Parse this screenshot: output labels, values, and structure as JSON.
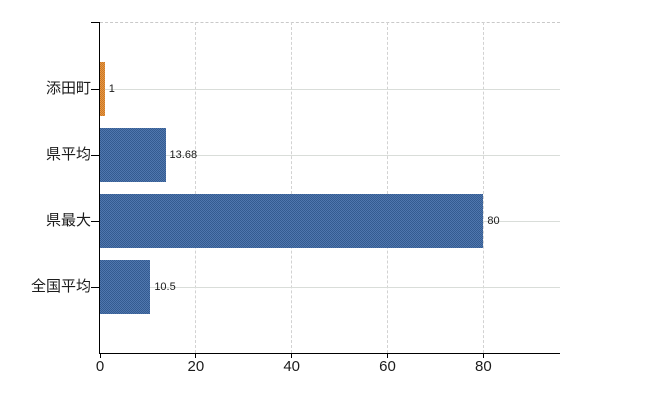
{
  "chart_data": {
    "type": "bar",
    "orientation": "horizontal",
    "title": "",
    "xlabel": "",
    "ylabel": "",
    "categories": [
      "添田町",
      "県平均",
      "県最大",
      "全国平均"
    ],
    "values": [
      1,
      13.68,
      80,
      10.5
    ],
    "value_labels": [
      "1",
      "13.68",
      "80",
      "10.5"
    ],
    "bar_colors": [
      "#e78b2e",
      "#3c68a5",
      "#3c68a5",
      "#3c68a5"
    ],
    "xlim": [
      0,
      96
    ],
    "x_ticks": [
      0,
      20,
      40,
      60,
      80
    ],
    "x_tick_labels": [
      "0",
      "20",
      "40",
      "60",
      "80"
    ],
    "grid": "vertical-dashed-plus-row-center-lines",
    "legend": "none"
  },
  "colors": {
    "bar_blue": "#3c68a5",
    "bar_orange": "#e78b2e",
    "axis": "#000000",
    "vgrid_dashed": "#d2d2d2",
    "hgrid_solid": "#d9ddd9",
    "plot_top_dashed": "#c9c9c9",
    "label_text": "#1c1c1c",
    "background": "#ffffff"
  }
}
